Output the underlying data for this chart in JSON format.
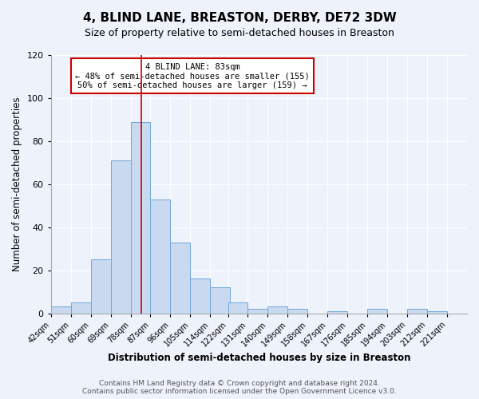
{
  "title": "4, BLIND LANE, BREASTON, DERBY, DE72 3DW",
  "subtitle": "Size of property relative to semi-detached houses in Breaston",
  "xlabel": "Distribution of semi-detached houses by size in Breaston",
  "ylabel": "Number of semi-detached properties",
  "bin_edges": [
    42,
    51,
    60,
    69,
    78,
    87,
    96,
    105,
    114,
    122,
    131,
    140,
    149,
    158,
    167,
    176,
    185,
    194,
    203,
    212,
    221
  ],
  "counts": [
    3,
    5,
    25,
    71,
    89,
    53,
    33,
    16,
    12,
    5,
    2,
    3,
    2,
    0,
    1,
    0,
    2,
    0,
    2,
    1
  ],
  "bar_facecolor": "#c9d9f0",
  "bar_edgecolor": "#6fa8d9",
  "vline_x": 83,
  "vline_color": "#cc0000",
  "annotation_title": "4 BLIND LANE: 83sqm",
  "annotation_line1": "← 48% of semi-detached houses are smaller (155)",
  "annotation_line2": "50% of semi-detached houses are larger (159) →",
  "annotation_box_edgecolor": "#cc0000",
  "annotation_box_facecolor": "#ffffff",
  "ylim": [
    0,
    120
  ],
  "tick_labels": [
    "42sqm",
    "51sqm",
    "60sqm",
    "69sqm",
    "78sqm",
    "87sqm",
    "96sqm",
    "105sqm",
    "114sqm",
    "122sqm",
    "131sqm",
    "140sqm",
    "149sqm",
    "158sqm",
    "167sqm",
    "176sqm",
    "185sqm",
    "194sqm",
    "203sqm",
    "212sqm",
    "221sqm"
  ],
  "footer_line1": "Contains HM Land Registry data © Crown copyright and database right 2024.",
  "footer_line2": "Contains public sector information licensed under the Open Government Licence v3.0.",
  "background_color": "#eef2fa",
  "grid_color": "#ffffff",
  "title_fontsize": 11,
  "subtitle_fontsize": 9,
  "axis_label_fontsize": 8.5,
  "tick_fontsize": 7,
  "footer_fontsize": 6.5,
  "annotation_fontsize": 7.5
}
